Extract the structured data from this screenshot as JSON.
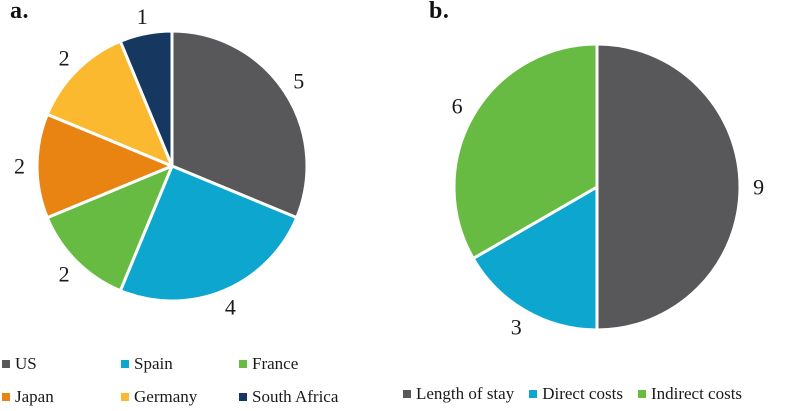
{
  "figure": {
    "background_color": "#ffffff",
    "text_color": "#1a1a1a"
  },
  "chart_data": [
    {
      "type": "pie",
      "title": "a.",
      "categories": [
        "US",
        "Spain",
        "France",
        "Japan",
        "Germany",
        "South Africa"
      ],
      "values": [
        5,
        4,
        2,
        2,
        2,
        1
      ],
      "colors": [
        "#58585A",
        "#0CA6CE",
        "#67BB43",
        "#E98413",
        "#FBB92F",
        "#16375F"
      ],
      "total": 16,
      "start_angle": "top",
      "direction": "clockwise",
      "data_labels": "outside",
      "legend_position": "bottom",
      "legend_rows": 2
    },
    {
      "type": "pie",
      "title": "b.",
      "categories": [
        "Length of stay",
        "Direct costs",
        "Indirect costs"
      ],
      "values": [
        9,
        3,
        6
      ],
      "colors": [
        "#58585A",
        "#0CA6CE",
        "#67BB43"
      ],
      "total": 18,
      "start_angle": "top",
      "direction": "clockwise",
      "data_labels": "outside",
      "legend_position": "bottom",
      "legend_rows": 1
    }
  ]
}
